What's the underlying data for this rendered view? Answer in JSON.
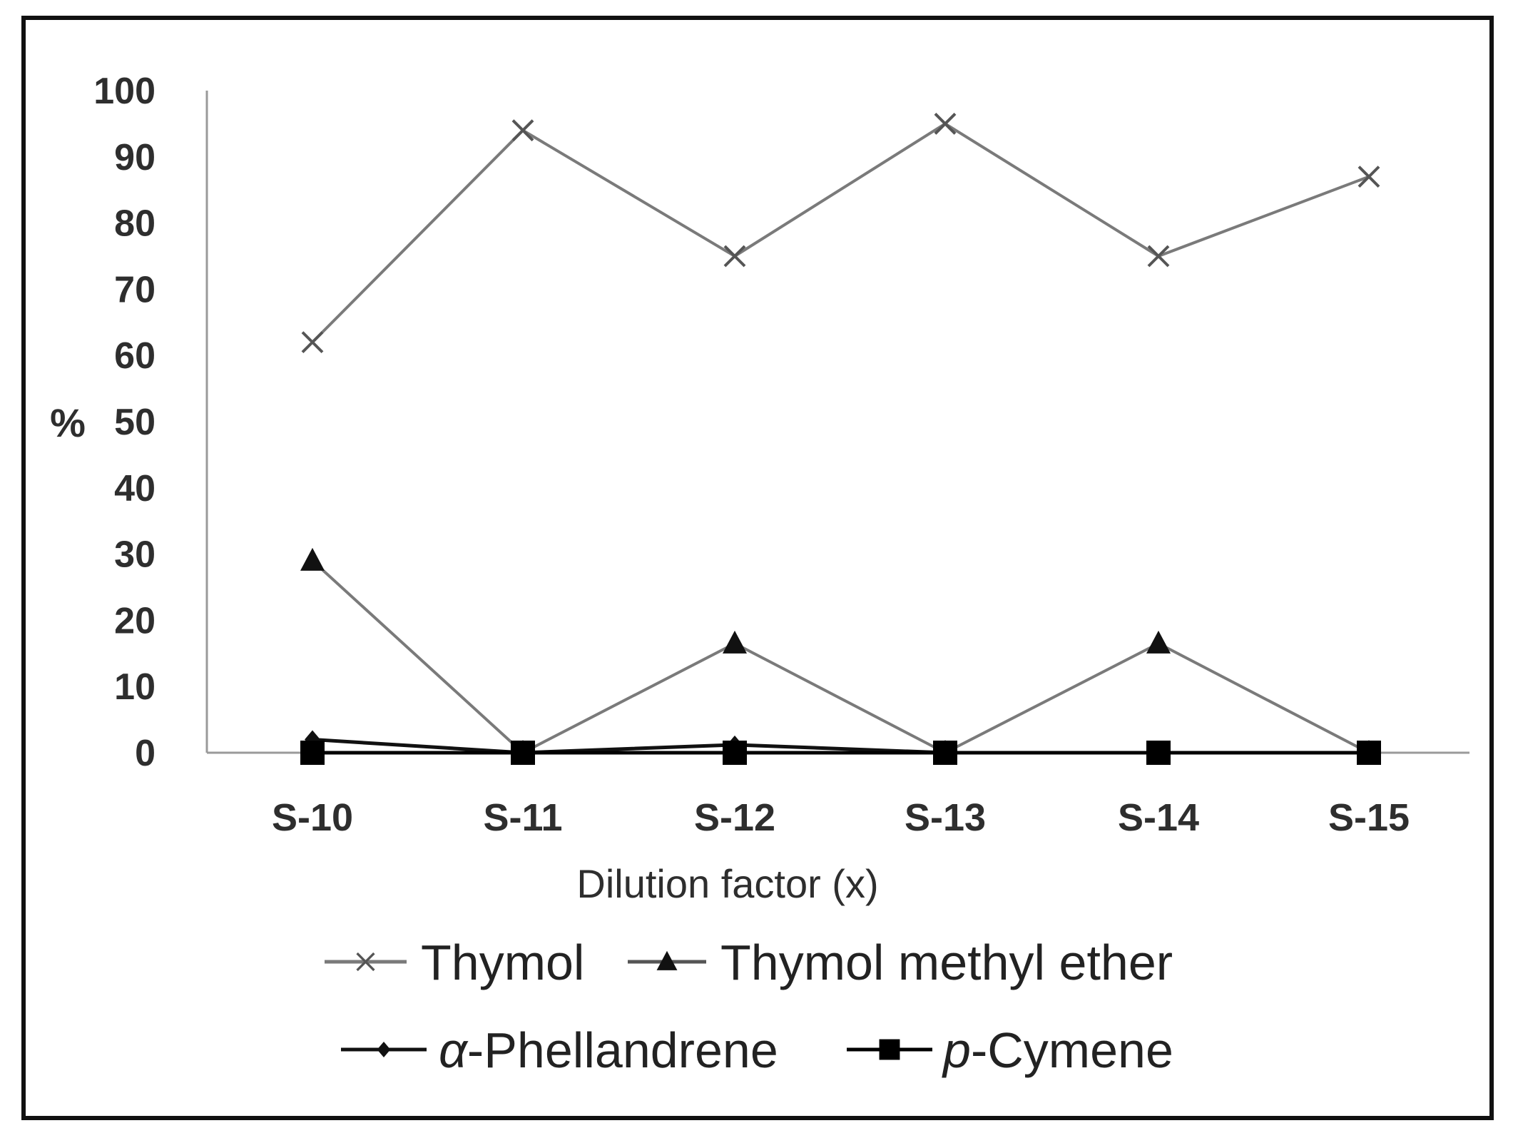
{
  "chart_data": {
    "type": "line",
    "title": "",
    "xlabel": "Dilution factor (x)",
    "ylabel": "%",
    "ylim": [
      0,
      100
    ],
    "yticks": [
      "0",
      "10",
      "20",
      "30",
      "40",
      "50",
      "60",
      "70",
      "80",
      "90",
      "100"
    ],
    "categories": [
      "S-10",
      "S-11",
      "S-12",
      "S-13",
      "S-14",
      "S-15"
    ],
    "grid": false,
    "legend_position": "bottom",
    "series": [
      {
        "name": "Thymol",
        "marker": "x",
        "color": "#7a7a7a",
        "values": [
          62,
          94,
          75,
          95,
          75,
          87
        ]
      },
      {
        "name": "Thymol methyl ether",
        "marker": "triangle",
        "color": "#7a7a7a",
        "values": [
          29,
          0,
          16.5,
          0,
          16.5,
          0
        ]
      },
      {
        "name": "α-Phellandrene",
        "prefix": "α",
        "rest": "-Phellandrene",
        "marker": "diamond",
        "color": "#111111",
        "values": [
          2,
          0,
          1.2,
          0,
          0,
          0
        ]
      },
      {
        "name": "p-Cymene",
        "prefix": "p",
        "rest": "-Cymene",
        "marker": "square",
        "color": "#000000",
        "values": [
          0,
          0,
          0,
          0,
          0,
          0
        ]
      }
    ]
  }
}
